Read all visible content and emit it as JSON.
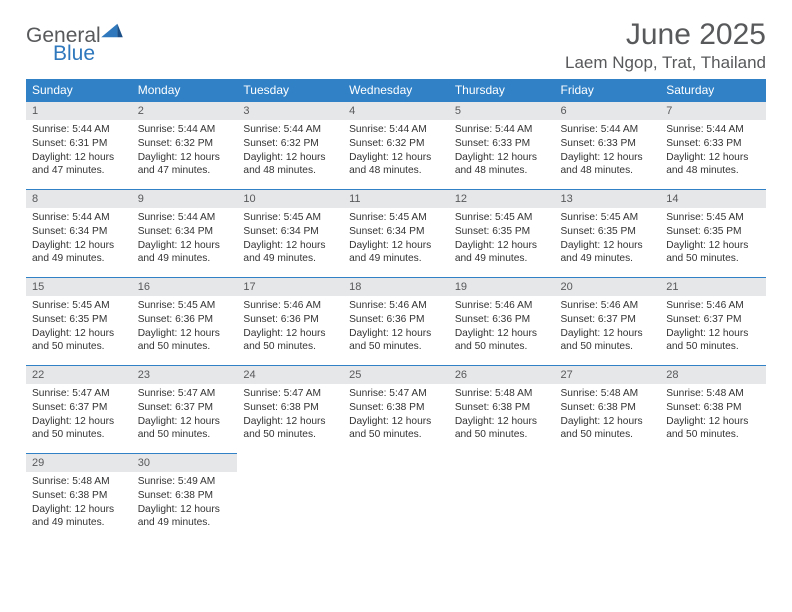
{
  "brand": {
    "word1": "General",
    "word2": "Blue"
  },
  "title": "June 2025",
  "location": "Laem Ngop, Trat, Thailand",
  "colors": {
    "header_bg": "#3081c6",
    "header_text": "#ffffff",
    "daynum_bg": "#e6e7e8",
    "text_gray": "#58595b",
    "brand_blue": "#2f78bd"
  },
  "weekdays": [
    "Sunday",
    "Monday",
    "Tuesday",
    "Wednesday",
    "Thursday",
    "Friday",
    "Saturday"
  ],
  "weeks": [
    [
      {
        "n": "1",
        "sr": "5:44 AM",
        "ss": "6:31 PM",
        "dh": "12",
        "dm": "47"
      },
      {
        "n": "2",
        "sr": "5:44 AM",
        "ss": "6:32 PM",
        "dh": "12",
        "dm": "47"
      },
      {
        "n": "3",
        "sr": "5:44 AM",
        "ss": "6:32 PM",
        "dh": "12",
        "dm": "48"
      },
      {
        "n": "4",
        "sr": "5:44 AM",
        "ss": "6:32 PM",
        "dh": "12",
        "dm": "48"
      },
      {
        "n": "5",
        "sr": "5:44 AM",
        "ss": "6:33 PM",
        "dh": "12",
        "dm": "48"
      },
      {
        "n": "6",
        "sr": "5:44 AM",
        "ss": "6:33 PM",
        "dh": "12",
        "dm": "48"
      },
      {
        "n": "7",
        "sr": "5:44 AM",
        "ss": "6:33 PM",
        "dh": "12",
        "dm": "48"
      }
    ],
    [
      {
        "n": "8",
        "sr": "5:44 AM",
        "ss": "6:34 PM",
        "dh": "12",
        "dm": "49"
      },
      {
        "n": "9",
        "sr": "5:44 AM",
        "ss": "6:34 PM",
        "dh": "12",
        "dm": "49"
      },
      {
        "n": "10",
        "sr": "5:45 AM",
        "ss": "6:34 PM",
        "dh": "12",
        "dm": "49"
      },
      {
        "n": "11",
        "sr": "5:45 AM",
        "ss": "6:34 PM",
        "dh": "12",
        "dm": "49"
      },
      {
        "n": "12",
        "sr": "5:45 AM",
        "ss": "6:35 PM",
        "dh": "12",
        "dm": "49"
      },
      {
        "n": "13",
        "sr": "5:45 AM",
        "ss": "6:35 PM",
        "dh": "12",
        "dm": "49"
      },
      {
        "n": "14",
        "sr": "5:45 AM",
        "ss": "6:35 PM",
        "dh": "12",
        "dm": "50"
      }
    ],
    [
      {
        "n": "15",
        "sr": "5:45 AM",
        "ss": "6:35 PM",
        "dh": "12",
        "dm": "50"
      },
      {
        "n": "16",
        "sr": "5:45 AM",
        "ss": "6:36 PM",
        "dh": "12",
        "dm": "50"
      },
      {
        "n": "17",
        "sr": "5:46 AM",
        "ss": "6:36 PM",
        "dh": "12",
        "dm": "50"
      },
      {
        "n": "18",
        "sr": "5:46 AM",
        "ss": "6:36 PM",
        "dh": "12",
        "dm": "50"
      },
      {
        "n": "19",
        "sr": "5:46 AM",
        "ss": "6:36 PM",
        "dh": "12",
        "dm": "50"
      },
      {
        "n": "20",
        "sr": "5:46 AM",
        "ss": "6:37 PM",
        "dh": "12",
        "dm": "50"
      },
      {
        "n": "21",
        "sr": "5:46 AM",
        "ss": "6:37 PM",
        "dh": "12",
        "dm": "50"
      }
    ],
    [
      {
        "n": "22",
        "sr": "5:47 AM",
        "ss": "6:37 PM",
        "dh": "12",
        "dm": "50"
      },
      {
        "n": "23",
        "sr": "5:47 AM",
        "ss": "6:37 PM",
        "dh": "12",
        "dm": "50"
      },
      {
        "n": "24",
        "sr": "5:47 AM",
        "ss": "6:38 PM",
        "dh": "12",
        "dm": "50"
      },
      {
        "n": "25",
        "sr": "5:47 AM",
        "ss": "6:38 PM",
        "dh": "12",
        "dm": "50"
      },
      {
        "n": "26",
        "sr": "5:48 AM",
        "ss": "6:38 PM",
        "dh": "12",
        "dm": "50"
      },
      {
        "n": "27",
        "sr": "5:48 AM",
        "ss": "6:38 PM",
        "dh": "12",
        "dm": "50"
      },
      {
        "n": "28",
        "sr": "5:48 AM",
        "ss": "6:38 PM",
        "dh": "12",
        "dm": "50"
      }
    ],
    [
      {
        "n": "29",
        "sr": "5:48 AM",
        "ss": "6:38 PM",
        "dh": "12",
        "dm": "49"
      },
      {
        "n": "30",
        "sr": "5:49 AM",
        "ss": "6:38 PM",
        "dh": "12",
        "dm": "49"
      },
      null,
      null,
      null,
      null,
      null
    ]
  ],
  "labels": {
    "sunrise": "Sunrise:",
    "sunset": "Sunset:",
    "daylight": "Daylight:",
    "hours": "hours",
    "and": "and",
    "minutes": "minutes."
  }
}
